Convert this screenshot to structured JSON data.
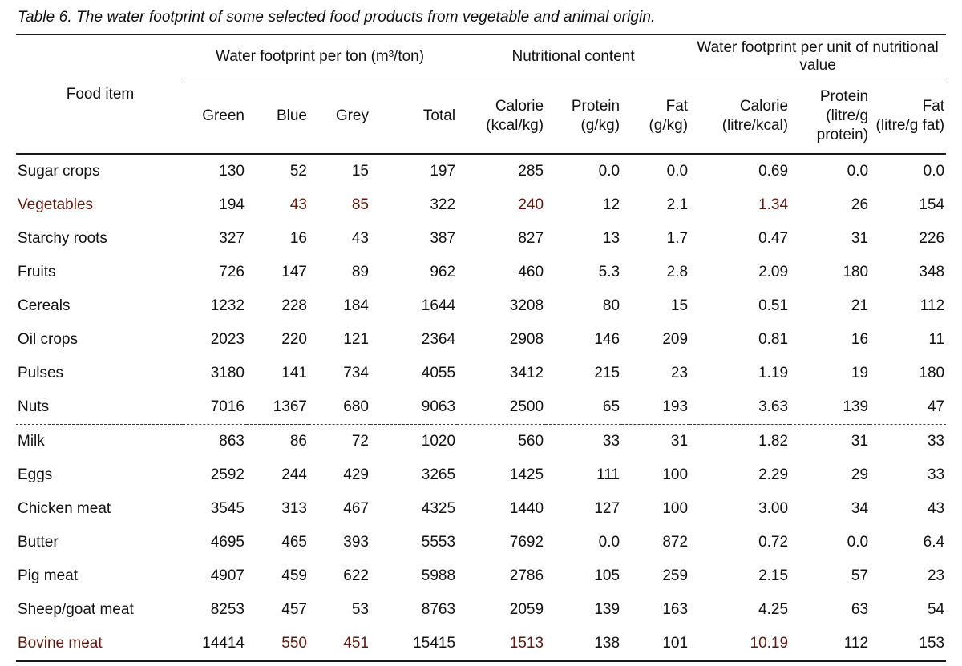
{
  "caption": "Table 6. The water footprint of some selected food products from vegetable and animal origin.",
  "table": {
    "food_item_header": "Food item",
    "groups": [
      {
        "label": "Water footprint per ton (m³/ton)",
        "span": 4
      },
      {
        "label": "Nutritional content",
        "span": 3
      },
      {
        "label": "Water footprint per unit of nutritional value",
        "span": 3
      }
    ],
    "columns": [
      {
        "label": "Green",
        "unit": ""
      },
      {
        "label": "Blue",
        "unit": ""
      },
      {
        "label": "Grey",
        "unit": ""
      },
      {
        "label": "Total",
        "unit": ""
      },
      {
        "label": "Calorie",
        "unit": "(kcal/kg)"
      },
      {
        "label": "Protein",
        "unit": "(g/kg)"
      },
      {
        "label": "Fat",
        "unit": "(g/kg)"
      },
      {
        "label": "Calorie",
        "unit": "(litre/kcal)"
      },
      {
        "label": "Protein",
        "unit": "(litre/g protein)"
      },
      {
        "label": "Fat",
        "unit": "(litre/g fat)"
      }
    ],
    "rows": [
      {
        "name": "Sugar crops",
        "values": [
          "130",
          "52",
          "15",
          "197",
          "285",
          "0.0",
          "0.0",
          "0.69",
          "0.0",
          "0.0"
        ]
      },
      {
        "name": "Vegetables",
        "values": [
          "194",
          "43",
          "85",
          "322",
          "240",
          "12",
          "2.1",
          "1.34",
          "26",
          "154"
        ]
      },
      {
        "name": "Starchy roots",
        "values": [
          "327",
          "16",
          "43",
          "387",
          "827",
          "13",
          "1.7",
          "0.47",
          "31",
          "226"
        ]
      },
      {
        "name": "Fruits",
        "values": [
          "726",
          "147",
          "89",
          "962",
          "460",
          "5.3",
          "2.8",
          "2.09",
          "180",
          "348"
        ]
      },
      {
        "name": "Cereals",
        "values": [
          "1232",
          "228",
          "184",
          "1644",
          "3208",
          "80",
          "15",
          "0.51",
          "21",
          "112"
        ]
      },
      {
        "name": "Oil crops",
        "values": [
          "2023",
          "220",
          "121",
          "2364",
          "2908",
          "146",
          "209",
          "0.81",
          "16",
          "11"
        ]
      },
      {
        "name": "Pulses",
        "values": [
          "3180",
          "141",
          "734",
          "4055",
          "3412",
          "215",
          "23",
          "1.19",
          "19",
          "180"
        ]
      },
      {
        "name": "Nuts",
        "values": [
          "7016",
          "1367",
          "680",
          "9063",
          "2500",
          "65",
          "193",
          "3.63",
          "139",
          "47"
        ]
      },
      {
        "name": "Milk",
        "values": [
          "863",
          "86",
          "72",
          "1020",
          "560",
          "33",
          "31",
          "1.82",
          "31",
          "33"
        ]
      },
      {
        "name": "Eggs",
        "values": [
          "2592",
          "244",
          "429",
          "3265",
          "1425",
          "111",
          "100",
          "2.29",
          "29",
          "33"
        ]
      },
      {
        "name": "Chicken meat",
        "values": [
          "3545",
          "313",
          "467",
          "4325",
          "1440",
          "127",
          "100",
          "3.00",
          "34",
          "43"
        ]
      },
      {
        "name": "Butter",
        "values": [
          "4695",
          "465",
          "393",
          "5553",
          "7692",
          "0.0",
          "872",
          "0.72",
          "0.0",
          "6.4"
        ]
      },
      {
        "name": "Pig meat",
        "values": [
          "4907",
          "459",
          "622",
          "5988",
          "2786",
          "105",
          "259",
          "2.15",
          "57",
          "23"
        ]
      },
      {
        "name": "Sheep/goat meat",
        "values": [
          "8253",
          "457",
          "53",
          "8763",
          "2059",
          "139",
          "163",
          "4.25",
          "63",
          "54"
        ]
      },
      {
        "name": "Bovine meat",
        "values": [
          "14414",
          "550",
          "451",
          "15415",
          "1513",
          "138",
          "101",
          "10.19",
          "112",
          "153"
        ]
      }
    ],
    "divider_before_row": 8
  },
  "highlights": {
    "color": "#f6ac9c",
    "text_color": "#5f190e",
    "cells": [
      {
        "row": 1,
        "col": "name",
        "style": "tail-right"
      },
      {
        "row": 1,
        "col": 1,
        "style": "join-right"
      },
      {
        "row": 1,
        "col": 2,
        "style": "join-left"
      },
      {
        "row": 1,
        "col": 4,
        "style": ""
      },
      {
        "row": 1,
        "col": 7,
        "style": ""
      },
      {
        "row": 14,
        "col": "name",
        "style": "tail-right"
      },
      {
        "row": 14,
        "col": 1,
        "style": "join-right"
      },
      {
        "row": 14,
        "col": 2,
        "style": "join-left"
      },
      {
        "row": 14,
        "col": 4,
        "style": ""
      },
      {
        "row": 14,
        "col": 7,
        "style": ""
      }
    ]
  }
}
